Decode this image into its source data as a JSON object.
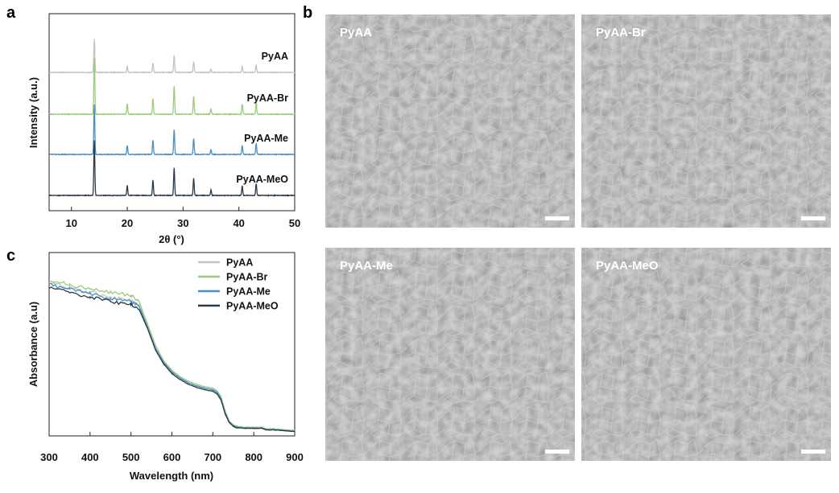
{
  "panel_letters": {
    "a": "a",
    "b": "b",
    "c": "c"
  },
  "colors": {
    "PyAA": "#c4c4c4",
    "PyAA-Br": "#9ccc7a",
    "PyAA-Me": "#4a8fc0",
    "PyAA-MeO": "#2a3a48"
  },
  "chart_data": [
    {
      "panel": "a",
      "type": "line",
      "xlabel": "2θ (°)",
      "ylabel": "Intensity (a.u.)",
      "xlim": [
        6,
        50
      ],
      "xticks": [
        10,
        20,
        30,
        40,
        50
      ],
      "layout": "stacked-offset",
      "peaks": [
        {
          "x": 14.1,
          "rel": 1.0
        },
        {
          "x": 20.0,
          "rel": 0.18
        },
        {
          "x": 24.6,
          "rel": 0.28
        },
        {
          "x": 28.4,
          "rel": 0.5
        },
        {
          "x": 31.9,
          "rel": 0.32
        },
        {
          "x": 35.0,
          "rel": 0.1
        },
        {
          "x": 40.6,
          "rel": 0.18
        },
        {
          "x": 43.1,
          "rel": 0.22
        }
      ],
      "series": [
        {
          "name": "PyAA",
          "color": "#c4c4c4",
          "peak_scale": 0.42
        },
        {
          "name": "PyAA-Br",
          "color": "#9ccc7a",
          "peak_scale": 0.7
        },
        {
          "name": "PyAA-Me",
          "color": "#4a8fc0",
          "peak_scale": 0.62
        },
        {
          "name": "PyAA-MeO",
          "color": "#2a3a48",
          "peak_scale": 0.68
        }
      ]
    },
    {
      "panel": "c",
      "type": "line",
      "xlabel": "Wavelength (nm)",
      "ylabel": "Absorbance (a.u)",
      "xlim": [
        300,
        900
      ],
      "xticks": [
        300,
        400,
        500,
        600,
        700,
        800,
        900
      ],
      "legend": "top-right",
      "x": [
        300,
        350,
        400,
        450,
        500,
        520,
        540,
        560,
        580,
        600,
        620,
        640,
        660,
        680,
        700,
        710,
        720,
        730,
        740,
        750,
        760,
        780,
        800,
        820,
        830,
        850,
        900
      ],
      "series": [
        {
          "name": "PyAA",
          "color": "#c4c4c4",
          "values": [
            0.96,
            0.93,
            0.9,
            0.87,
            0.85,
            0.82,
            0.68,
            0.54,
            0.45,
            0.39,
            0.35,
            0.32,
            0.3,
            0.285,
            0.275,
            0.26,
            0.22,
            0.13,
            0.07,
            0.045,
            0.035,
            0.03,
            0.03,
            0.03,
            0.02,
            0.02,
            0.01
          ]
        },
        {
          "name": "PyAA-Br",
          "color": "#9ccc7a",
          "values": [
            0.98,
            0.95,
            0.92,
            0.9,
            0.88,
            0.84,
            0.7,
            0.56,
            0.46,
            0.4,
            0.36,
            0.33,
            0.31,
            0.295,
            0.285,
            0.27,
            0.23,
            0.14,
            0.075,
            0.05,
            0.04,
            0.035,
            0.035,
            0.035,
            0.025,
            0.025,
            0.015
          ]
        },
        {
          "name": "PyAA-Me",
          "color": "#4a8fc0",
          "values": [
            0.95,
            0.92,
            0.89,
            0.86,
            0.84,
            0.81,
            0.68,
            0.54,
            0.45,
            0.39,
            0.35,
            0.32,
            0.3,
            0.285,
            0.275,
            0.26,
            0.22,
            0.13,
            0.07,
            0.045,
            0.035,
            0.03,
            0.03,
            0.03,
            0.02,
            0.02,
            0.01
          ]
        },
        {
          "name": "PyAA-MeO",
          "color": "#2a3a48",
          "values": [
            0.93,
            0.9,
            0.87,
            0.84,
            0.82,
            0.79,
            0.67,
            0.53,
            0.44,
            0.38,
            0.34,
            0.31,
            0.29,
            0.275,
            0.265,
            0.25,
            0.21,
            0.12,
            0.065,
            0.04,
            0.03,
            0.028,
            0.028,
            0.028,
            0.018,
            0.018,
            0.008
          ]
        }
      ]
    }
  ],
  "sem_images": [
    {
      "label": "PyAA"
    },
    {
      "label": "PyAA-Br"
    },
    {
      "label": "PyAA-Me"
    },
    {
      "label": "PyAA-MeO"
    }
  ]
}
